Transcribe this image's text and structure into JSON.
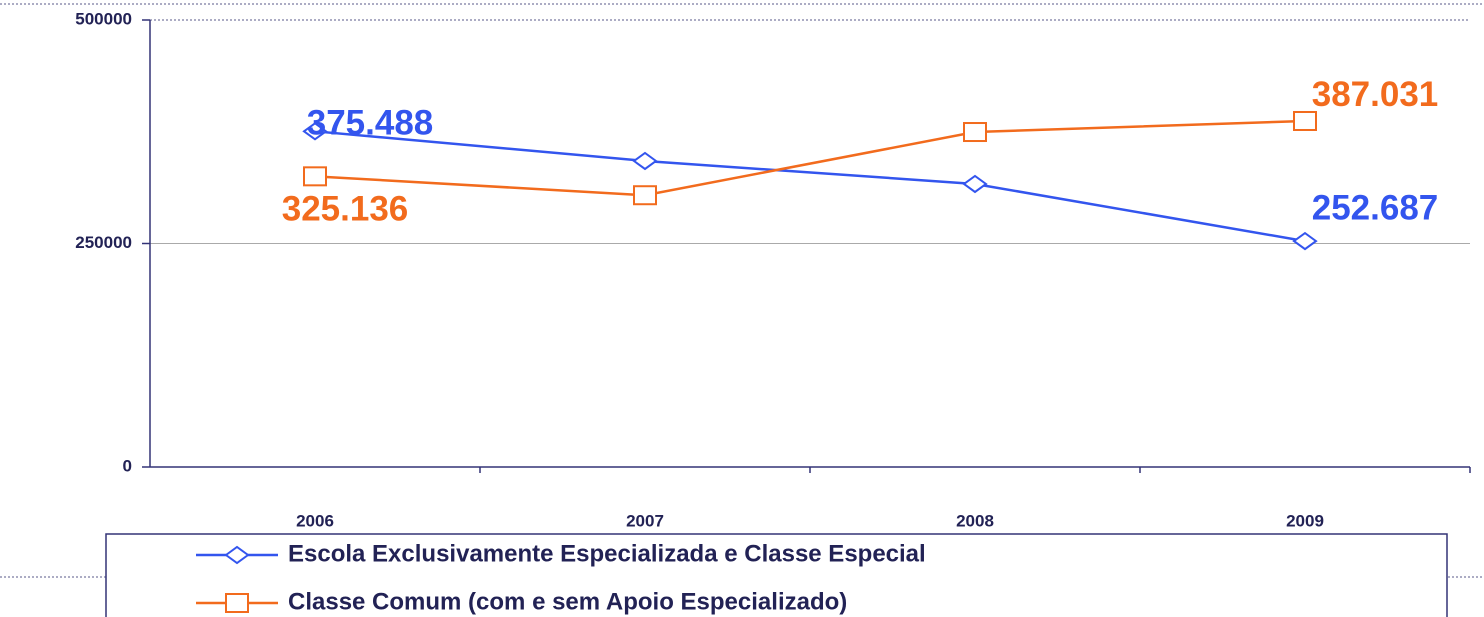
{
  "chart_data": {
    "type": "line",
    "categories": [
      "2006",
      "2007",
      "2008",
      "2009"
    ],
    "series": [
      {
        "name": "Escola Exclusivamente Especializada e Classe Especial",
        "color": "#3355ee",
        "marker": "diamond",
        "values": [
          375488,
          342300,
          316600,
          252687
        ],
        "value_labels": [
          "375.488",
          null,
          null,
          "252.687"
        ]
      },
      {
        "name": "Classe Comum (com e sem Apoio Especializado)",
        "color": "#f26b1d",
        "marker": "square",
        "values": [
          325136,
          304000,
          374700,
          387031
        ],
        "value_labels": [
          "325.136",
          null,
          null,
          "387.031"
        ]
      }
    ],
    "ylim": [
      0,
      500000
    ],
    "yticks": [
      0,
      250000,
      500000
    ],
    "grid": true
  }
}
